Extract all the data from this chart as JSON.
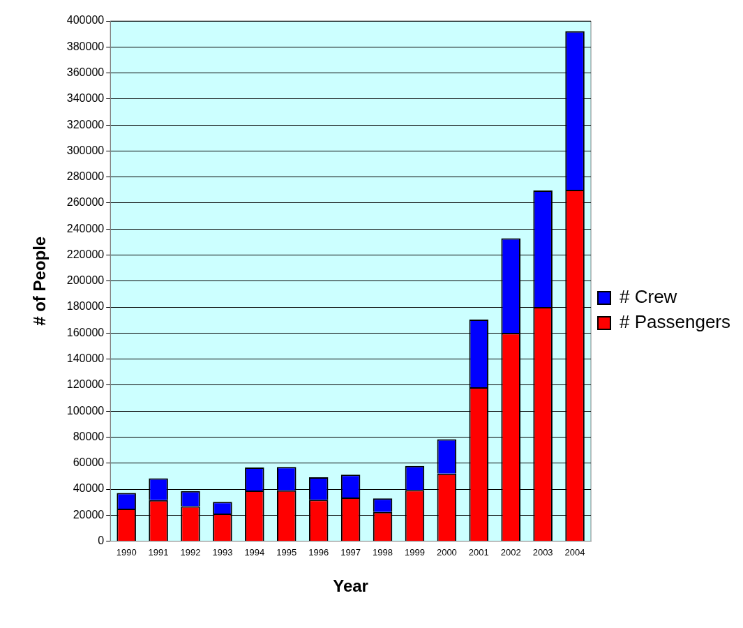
{
  "chart_data": {
    "type": "bar",
    "xlabel": "Year",
    "ylabel": "# of People",
    "stacked": true,
    "legend": "right",
    "grid": "y",
    "categories": [
      "1990",
      "1991",
      "1992",
      "1993",
      "1994",
      "1995",
      "1996",
      "1997",
      "1998",
      "1999",
      "2000",
      "2001",
      "2002",
      "2003",
      "2004"
    ],
    "series": [
      {
        "name": "# Passengers",
        "color": "#ff0000",
        "values": [
          25000,
          31600,
          26900,
          21300,
          38900,
          39100,
          31800,
          33600,
          22500,
          39400,
          52000,
          118300,
          160100,
          180000,
          270200
        ]
      },
      {
        "name": "# Crew",
        "color": "#0000ff",
        "values": [
          12100,
          16800,
          11600,
          8900,
          17800,
          18000,
          17300,
          17500,
          10400,
          18400,
          26400,
          52100,
          72800,
          89700,
          121900
        ]
      }
    ],
    "ylim": [
      0,
      400000
    ],
    "yticks": [
      0,
      20000,
      40000,
      60000,
      80000,
      100000,
      120000,
      140000,
      160000,
      180000,
      200000,
      220000,
      240000,
      260000,
      280000,
      300000,
      320000,
      340000,
      360000,
      380000,
      400000
    ]
  }
}
